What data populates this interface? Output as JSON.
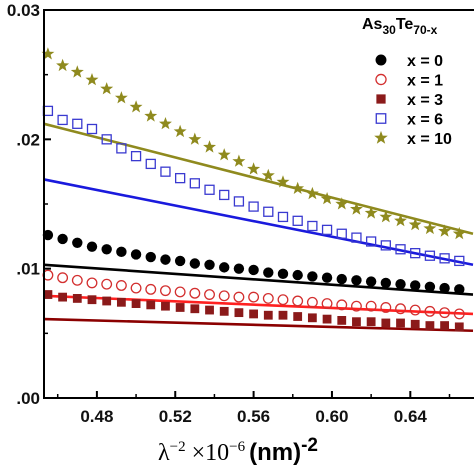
{
  "chart_data": {
    "type": "scatter",
    "title": "",
    "xlabel": "λ⁻² ×10⁻⁶ (nm)⁻²",
    "xlabel_parts": {
      "lambda": "λ",
      "lambda_exp": "−2",
      "times": "×10",
      "times_exp": "−6",
      "nm": "(nm)",
      "nm_exp": "-2"
    },
    "ylabel": "",
    "xlim": [
      0.453,
      0.672
    ],
    "ylim": [
      0.0,
      0.03
    ],
    "xticks": [
      0.48,
      0.52,
      0.56,
      0.6,
      0.64
    ],
    "xtick_labels": [
      "0.48",
      "0.52",
      "0.56",
      "0.60",
      "0.64"
    ],
    "yticks": [
      0.0,
      0.01,
      0.02,
      0.03
    ],
    "ytick_labels": [
      ".00",
      ".01",
      ".02",
      "0.03"
    ],
    "grid": false,
    "legend": {
      "title": "As30Te70-x",
      "title_parts": {
        "as": "As",
        "as_sub": "30",
        "te": "Te",
        "te_sub": "70-x"
      },
      "placement": "top-right"
    },
    "series": [
      {
        "name": "x = 0",
        "marker": "filled-circle",
        "color": "#000000",
        "line_color": "#000000",
        "x": [
          0.455,
          0.4625,
          0.47,
          0.4775,
          0.485,
          0.4925,
          0.5,
          0.5075,
          0.515,
          0.5225,
          0.53,
          0.5375,
          0.545,
          0.5525,
          0.56,
          0.5675,
          0.575,
          0.5825,
          0.59,
          0.5975,
          0.605,
          0.6125,
          0.62,
          0.6275,
          0.635,
          0.6425,
          0.65,
          0.6575,
          0.665
        ],
        "y": [
          0.0126,
          0.0123,
          0.012,
          0.0117,
          0.0115,
          0.0113,
          0.0111,
          0.0109,
          0.0107,
          0.0106,
          0.0104,
          0.0103,
          0.0101,
          0.01,
          0.0099,
          0.0097,
          0.0096,
          0.0095,
          0.0094,
          0.0093,
          0.0092,
          0.0091,
          0.009,
          0.0089,
          0.0088,
          0.0087,
          0.0086,
          0.0085,
          0.0084
        ],
        "fit": [
          [
            0.453,
            0.0103
          ],
          [
            0.672,
            0.008
          ]
        ]
      },
      {
        "name": "x = 1",
        "marker": "open-circle",
        "color": "#d32f2f",
        "line_color": "#ff2020",
        "x": [
          0.455,
          0.4625,
          0.47,
          0.4775,
          0.485,
          0.4925,
          0.5,
          0.5075,
          0.515,
          0.5225,
          0.53,
          0.5375,
          0.545,
          0.5525,
          0.56,
          0.5675,
          0.575,
          0.5825,
          0.59,
          0.5975,
          0.605,
          0.6125,
          0.62,
          0.6275,
          0.635,
          0.6425,
          0.65,
          0.6575,
          0.665
        ],
        "y": [
          0.0095,
          0.0093,
          0.0091,
          0.0089,
          0.0088,
          0.0087,
          0.0085,
          0.0084,
          0.0083,
          0.0082,
          0.0081,
          0.008,
          0.0079,
          0.0078,
          0.0078,
          0.0077,
          0.0076,
          0.0075,
          0.0074,
          0.0073,
          0.0072,
          0.0071,
          0.0071,
          0.007,
          0.0069,
          0.0068,
          0.0067,
          0.0066,
          0.0065
        ],
        "fit": [
          [
            0.453,
            0.0079
          ],
          [
            0.672,
            0.0065
          ]
        ]
      },
      {
        "name": "x = 3",
        "marker": "filled-square",
        "color": "#8b1a1a",
        "line_color": "#8b0000",
        "x": [
          0.455,
          0.4625,
          0.47,
          0.4775,
          0.485,
          0.4925,
          0.5,
          0.5075,
          0.515,
          0.5225,
          0.53,
          0.5375,
          0.545,
          0.5525,
          0.56,
          0.5675,
          0.575,
          0.5825,
          0.59,
          0.5975,
          0.605,
          0.6125,
          0.62,
          0.6275,
          0.635,
          0.6425,
          0.65,
          0.6575,
          0.665
        ],
        "y": [
          0.008,
          0.0078,
          0.0077,
          0.0076,
          0.0075,
          0.0074,
          0.0073,
          0.0072,
          0.0071,
          0.007,
          0.0069,
          0.0068,
          0.0067,
          0.0066,
          0.0065,
          0.0064,
          0.0064,
          0.0063,
          0.0062,
          0.0061,
          0.006,
          0.0059,
          0.0059,
          0.0058,
          0.0058,
          0.0057,
          0.0056,
          0.0056,
          0.0055
        ],
        "fit": [
          [
            0.453,
            0.0061
          ],
          [
            0.672,
            0.0052
          ]
        ]
      },
      {
        "name": "x = 6",
        "marker": "open-square",
        "color": "#3a3ad0",
        "line_color": "#1a1add",
        "x": [
          0.455,
          0.4625,
          0.47,
          0.4775,
          0.485,
          0.4925,
          0.5,
          0.5075,
          0.515,
          0.5225,
          0.53,
          0.5375,
          0.545,
          0.5525,
          0.56,
          0.5675,
          0.575,
          0.5825,
          0.59,
          0.5975,
          0.605,
          0.6125,
          0.62,
          0.6275,
          0.635,
          0.6425,
          0.65,
          0.6575,
          0.665
        ],
        "y": [
          0.0222,
          0.0215,
          0.0212,
          0.0208,
          0.02,
          0.0193,
          0.0187,
          0.0181,
          0.0175,
          0.017,
          0.0166,
          0.0161,
          0.0157,
          0.0152,
          0.0148,
          0.0144,
          0.014,
          0.0137,
          0.0133,
          0.013,
          0.0127,
          0.0124,
          0.0121,
          0.0118,
          0.0115,
          0.0112,
          0.011,
          0.0108,
          0.0106
        ],
        "fit": [
          [
            0.453,
            0.0169
          ],
          [
            0.672,
            0.0103
          ]
        ]
      },
      {
        "name": "x = 10",
        "marker": "star",
        "color": "#8f8a1e",
        "line_color": "#8f8a1e",
        "x": [
          0.455,
          0.4625,
          0.47,
          0.4775,
          0.485,
          0.4925,
          0.5,
          0.5075,
          0.515,
          0.5225,
          0.53,
          0.5375,
          0.545,
          0.5525,
          0.56,
          0.5675,
          0.575,
          0.5825,
          0.59,
          0.5975,
          0.605,
          0.6125,
          0.62,
          0.6275,
          0.635,
          0.6425,
          0.65,
          0.6575,
          0.665
        ],
        "y": [
          0.0266,
          0.0257,
          0.0252,
          0.0246,
          0.0239,
          0.0232,
          0.0225,
          0.0218,
          0.0212,
          0.0206,
          0.02,
          0.0194,
          0.0188,
          0.0183,
          0.0177,
          0.0172,
          0.0167,
          0.0162,
          0.0158,
          0.0154,
          0.015,
          0.0146,
          0.0143,
          0.014,
          0.0137,
          0.0134,
          0.0131,
          0.0129,
          0.0127
        ],
        "fit": [
          [
            0.453,
            0.0212
          ],
          [
            0.672,
            0.0127
          ]
        ]
      }
    ]
  }
}
